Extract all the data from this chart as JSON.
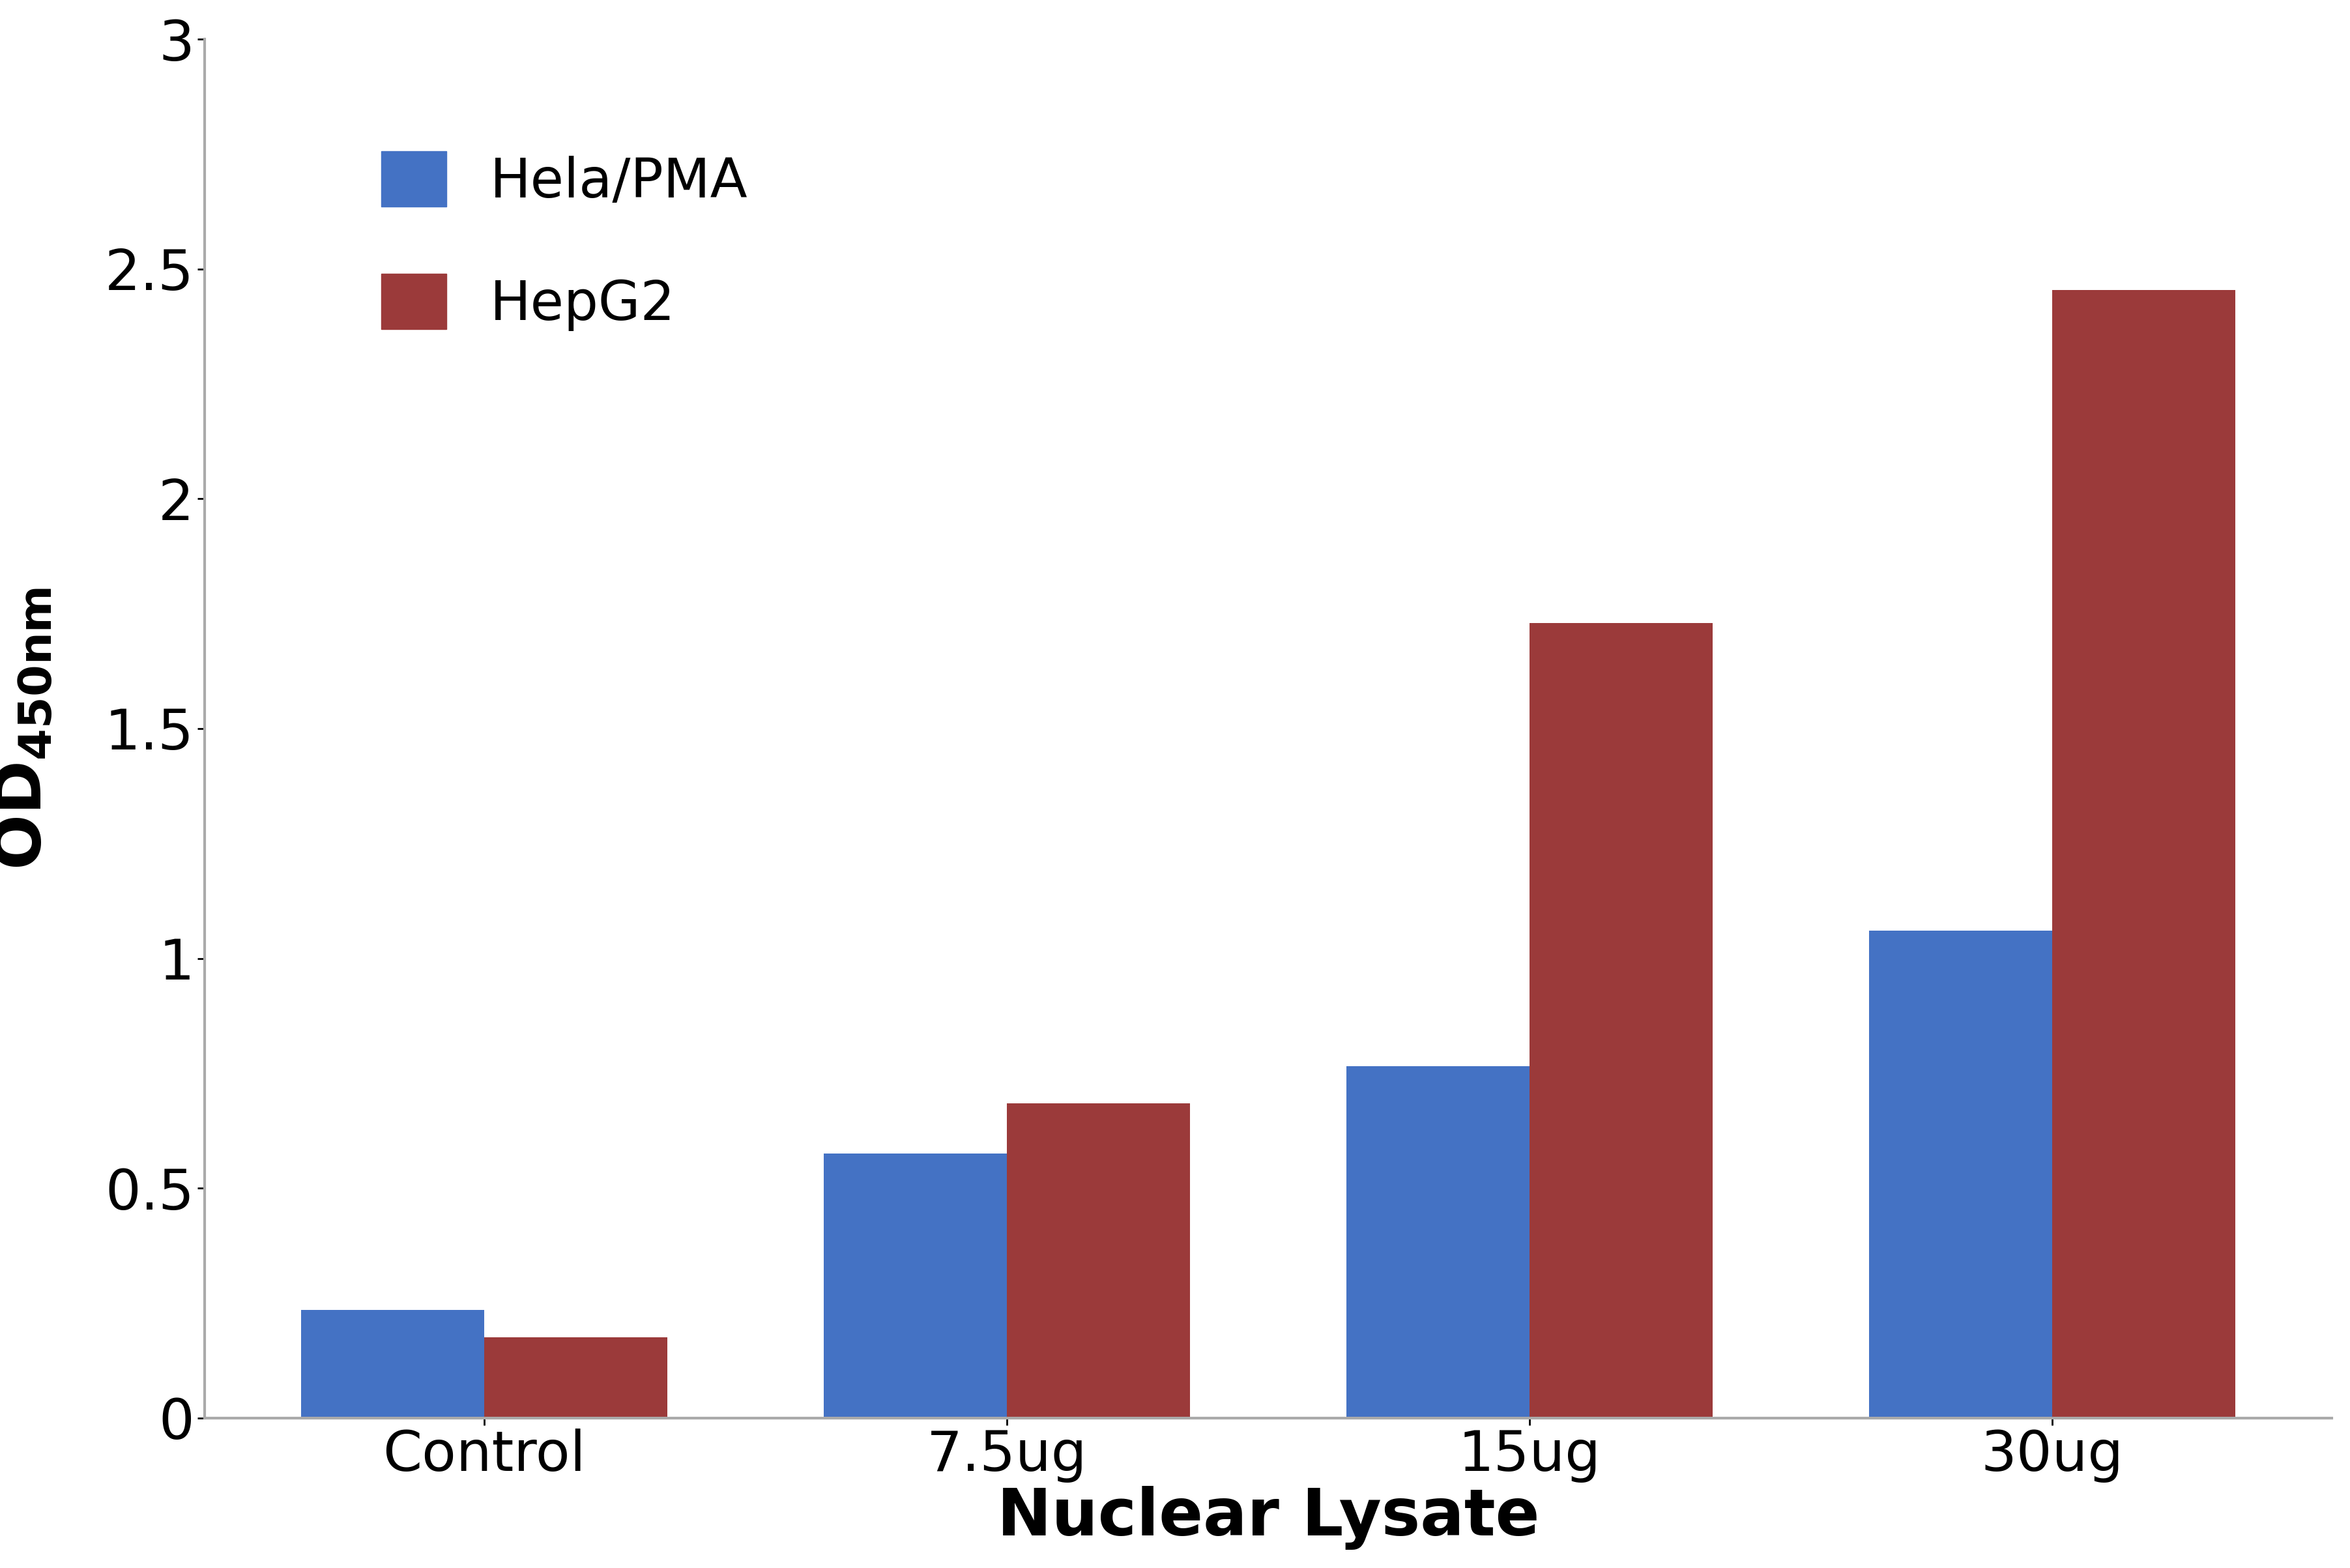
{
  "categories": [
    "Control",
    "7.5ug",
    "15ug",
    "30ug"
  ],
  "hela_pma": [
    0.235,
    0.575,
    0.765,
    1.06
  ],
  "hepg2": [
    0.175,
    0.685,
    1.73,
    2.455
  ],
  "hela_color": "#4472C4",
  "hepg2_color": "#9B3A3A",
  "xlabel": "Nuclear Lysate",
  "ylim": [
    0,
    3.0
  ],
  "yticks": [
    0,
    0.5,
    1.0,
    1.5,
    2.0,
    2.5,
    3.0
  ],
  "legend_hela": "Hela/PMA",
  "legend_hepg2": "HepG2",
  "bar_width": 0.35,
  "background_color": "#ffffff",
  "label_fontsize": 72,
  "tick_fontsize": 62,
  "legend_fontsize": 60,
  "spine_color": "#aaaaaa"
}
